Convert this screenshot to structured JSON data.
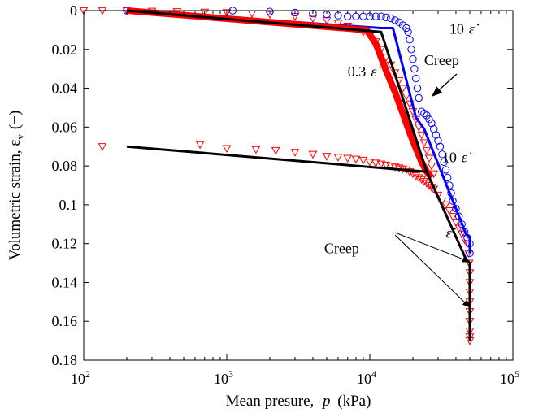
{
  "chart_data": {
    "type": "scatter",
    "title": "",
    "xlabel": "Mean presure,",
    "xlabel_symbol": "p",
    "xlabel_unit": "(kPa)",
    "ylabel": "Volumetric strain, ε",
    "ylabel_subscript": "v",
    "ylabel_unit": "(−)",
    "xscale": "log",
    "xlim": [
      100,
      100000
    ],
    "ylim": [
      0,
      0.18
    ],
    "y_reversed": true,
    "grid": false,
    "x_ticks": [
      {
        "value": 100,
        "base": "10",
        "exp": "2"
      },
      {
        "value": 1000,
        "base": "10",
        "exp": "3"
      },
      {
        "value": 10000,
        "base": "10",
        "exp": "4"
      },
      {
        "value": 100000,
        "base": "10",
        "exp": "5"
      }
    ],
    "y_ticks": [
      {
        "value": 0,
        "label": "0"
      },
      {
        "value": 0.02,
        "label": "0.02"
      },
      {
        "value": 0.04,
        "label": "0.04"
      },
      {
        "value": 0.06,
        "label": "0.06"
      },
      {
        "value": 0.08,
        "label": "0.08"
      },
      {
        "value": 0.1,
        "label": "0.1"
      },
      {
        "value": 0.12,
        "label": "0.12"
      },
      {
        "value": 0.14,
        "label": "0.14"
      },
      {
        "value": 0.16,
        "label": "0.16"
      },
      {
        "value": 0.18,
        "label": "0.18"
      }
    ],
    "colors": {
      "red": "#ff0000",
      "blue": "#0000ff",
      "black": "#000000"
    },
    "series": [
      {
        "marker": "triangle-down",
        "color": "#ff0000",
        "style": "markers",
        "points": [
          [
            100,
            0
          ],
          [
            135,
            0
          ],
          [
            200,
            0
          ],
          [
            300,
            0.0003
          ],
          [
            450,
            0.0005
          ],
          [
            700,
            0.0008
          ],
          [
            1000,
            0.001
          ],
          [
            1500,
            0.0015
          ],
          [
            2000,
            0.002
          ],
          [
            3000,
            0.003
          ],
          [
            4000,
            0.004
          ],
          [
            5000,
            0.005
          ],
          [
            6000,
            0.0065
          ],
          [
            7000,
            0.008
          ],
          [
            8000,
            0.0095
          ],
          [
            9000,
            0.011
          ],
          [
            10000,
            0.013
          ],
          [
            11000,
            0.016
          ],
          [
            12000,
            0.02
          ],
          [
            13000,
            0.024
          ],
          [
            14000,
            0.028
          ],
          [
            15000,
            0.032
          ],
          [
            16000,
            0.036
          ],
          [
            17000,
            0.04
          ],
          [
            18000,
            0.044
          ],
          [
            19000,
            0.048
          ],
          [
            20000,
            0.052
          ],
          [
            21000,
            0.056
          ],
          [
            22000,
            0.06
          ],
          [
            23000,
            0.064
          ],
          [
            24000,
            0.068
          ],
          [
            25000,
            0.072
          ],
          [
            26000,
            0.076
          ],
          [
            27000,
            0.08
          ],
          [
            28000,
            0.084
          ],
          [
            135,
            0.07
          ],
          [
            650,
            0.069
          ],
          [
            1000,
            0.071
          ],
          [
            1600,
            0.0715
          ],
          [
            2200,
            0.072
          ],
          [
            3000,
            0.073
          ],
          [
            4000,
            0.074
          ],
          [
            5000,
            0.075
          ],
          [
            6000,
            0.0755
          ],
          [
            7000,
            0.076
          ],
          [
            8000,
            0.0765
          ],
          [
            9000,
            0.077
          ],
          [
            10000,
            0.078
          ],
          [
            11000,
            0.0785
          ],
          [
            12000,
            0.079
          ],
          [
            13000,
            0.0795
          ],
          [
            14000,
            0.08
          ],
          [
            15000,
            0.0805
          ],
          [
            16000,
            0.081
          ],
          [
            17000,
            0.0815
          ],
          [
            18000,
            0.082
          ],
          [
            19000,
            0.083
          ],
          [
            20000,
            0.084
          ],
          [
            21000,
            0.085
          ],
          [
            22000,
            0.086
          ],
          [
            23000,
            0.087
          ],
          [
            24000,
            0.088
          ],
          [
            25000,
            0.089
          ],
          [
            26000,
            0.09
          ],
          [
            27000,
            0.091
          ],
          [
            28000,
            0.092
          ],
          [
            30000,
            0.095
          ],
          [
            32000,
            0.098
          ],
          [
            34000,
            0.1
          ],
          [
            36000,
            0.103
          ],
          [
            38000,
            0.106
          ],
          [
            40000,
            0.109
          ],
          [
            42000,
            0.112
          ],
          [
            44000,
            0.115
          ],
          [
            46000,
            0.118
          ],
          [
            48000,
            0.12
          ],
          [
            49000,
            0.125
          ],
          [
            49500,
            0.13
          ],
          [
            50000,
            0.135
          ],
          [
            50000,
            0.14
          ],
          [
            50000,
            0.145
          ],
          [
            50000,
            0.15
          ],
          [
            50000,
            0.155
          ],
          [
            50000,
            0.16
          ],
          [
            50000,
            0.165
          ],
          [
            50000,
            0.168
          ],
          [
            50000,
            0.17
          ]
        ]
      },
      {
        "marker": "circle",
        "color": "#0000ff",
        "style": "markers",
        "points": [
          [
            200,
            0
          ],
          [
            1100,
            0
          ],
          [
            2000,
            0.0005
          ],
          [
            3000,
            0.001
          ],
          [
            4000,
            0.0015
          ],
          [
            5000,
            0.002
          ],
          [
            6000,
            0.0025
          ],
          [
            7000,
            0.003
          ],
          [
            8000,
            0.003
          ],
          [
            9000,
            0.003
          ],
          [
            10000,
            0.003
          ],
          [
            11000,
            0.003
          ],
          [
            12000,
            0.003
          ],
          [
            13000,
            0.0035
          ],
          [
            14000,
            0.004
          ],
          [
            15000,
            0.005
          ],
          [
            16000,
            0.006
          ],
          [
            17000,
            0.0075
          ],
          [
            18000,
            0.009
          ],
          [
            18500,
            0.011
          ],
          [
            19000,
            0.015
          ],
          [
            19500,
            0.02
          ],
          [
            20000,
            0.025
          ],
          [
            20500,
            0.03
          ],
          [
            21000,
            0.035
          ],
          [
            21500,
            0.04
          ],
          [
            22000,
            0.045
          ],
          [
            23000,
            0.052
          ],
          [
            24000,
            0.053
          ],
          [
            25000,
            0.054
          ],
          [
            26000,
            0.056
          ],
          [
            27000,
            0.058
          ],
          [
            28000,
            0.061
          ],
          [
            29000,
            0.064
          ],
          [
            30000,
            0.067
          ],
          [
            31000,
            0.07
          ],
          [
            32000,
            0.074
          ],
          [
            33000,
            0.078
          ],
          [
            34000,
            0.082
          ],
          [
            35000,
            0.086
          ],
          [
            36000,
            0.09
          ],
          [
            37000,
            0.094
          ],
          [
            38000,
            0.098
          ],
          [
            40000,
            0.102
          ],
          [
            42000,
            0.106
          ],
          [
            44000,
            0.11
          ],
          [
            46000,
            0.114
          ],
          [
            48000,
            0.117
          ],
          [
            50000,
            0.12
          ],
          [
            50000,
            0.125
          ]
        ]
      },
      {
        "marker": "none",
        "color": "#0000ff",
        "style": "line",
        "points": [
          [
            200,
            0
          ],
          [
            12000,
            0.009
          ],
          [
            14500,
            0.009
          ],
          [
            21000,
            0.055
          ],
          [
            24000,
            0.061
          ],
          [
            47000,
            0.115
          ],
          [
            50000,
            0.117
          ],
          [
            50000,
            0.125
          ]
        ]
      },
      {
        "marker": "none",
        "color": "#ff0000",
        "style": "thick-line",
        "points": [
          [
            200,
            0
          ],
          [
            9500,
            0.01
          ],
          [
            11000,
            0.017
          ],
          [
            13000,
            0.031
          ],
          [
            15000,
            0.042
          ],
          [
            17000,
            0.053
          ],
          [
            19000,
            0.063
          ],
          [
            21000,
            0.071
          ],
          [
            23000,
            0.078
          ],
          [
            25000,
            0.083
          ],
          [
            27000,
            0.086
          ]
        ]
      },
      {
        "marker": "none",
        "color": "#000000",
        "style": "line",
        "points": [
          [
            200,
            0
          ],
          [
            12000,
            0.011
          ],
          [
            25000,
            0.083
          ],
          [
            47000,
            0.128
          ],
          [
            50000,
            0.13
          ],
          [
            50000,
            0.17
          ]
        ]
      },
      {
        "marker": "none",
        "color": "#000000",
        "style": "line",
        "points": [
          [
            200,
            0.07
          ],
          [
            25000,
            0.083
          ]
        ]
      }
    ],
    "annotations": [
      {
        "id": "ann-10-top",
        "text": "10",
        "rate_symbol": "ε̇",
        "x": 36000,
        "y": 0.012
      },
      {
        "id": "ann-03",
        "text": "0.3",
        "rate_symbol": "ε̇",
        "x": 7000,
        "y": 0.034
      },
      {
        "id": "ann-10-mid",
        "text": "10",
        "rate_symbol": "ε̇",
        "x": 32000,
        "y": 0.078
      },
      {
        "id": "ann-eps",
        "text": "",
        "rate_symbol": "ε̇",
        "x": 34000,
        "y": 0.117
      },
      {
        "id": "ann-creep-top",
        "text": "Creep",
        "rate_symbol": "",
        "x": 24000,
        "y": 0.028
      },
      {
        "id": "ann-creep-bottom",
        "text": "Creep",
        "rate_symbol": "",
        "x": 4800,
        "y": 0.125
      }
    ]
  }
}
